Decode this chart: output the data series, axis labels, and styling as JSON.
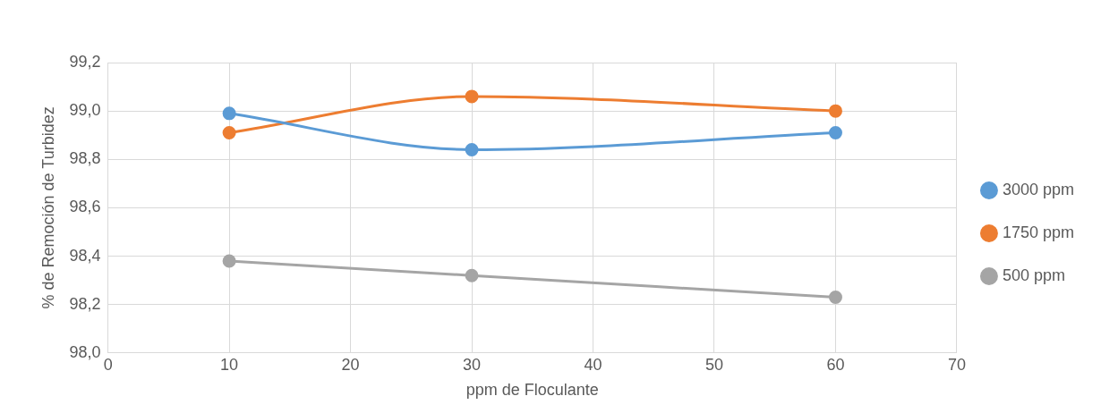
{
  "chart_data": {
    "type": "line",
    "xlabel": "ppm de Floculante",
    "ylabel": "% de Remoción de Turbidez",
    "x": [
      10,
      30,
      60
    ],
    "series": [
      {
        "name": "3000 ppm",
        "color": "#5b9bd5",
        "values": [
          98.99,
          98.84,
          98.91
        ]
      },
      {
        "name": "1750 ppm",
        "color": "#ed7d31",
        "values": [
          98.91,
          99.06,
          99.0
        ]
      },
      {
        "name": "500 ppm",
        "color": "#a5a5a5",
        "values": [
          98.38,
          98.32,
          98.23
        ]
      }
    ],
    "xlim": [
      0,
      70
    ],
    "xticks": [
      0,
      10,
      20,
      30,
      40,
      50,
      60,
      70
    ],
    "ylim": [
      98,
      99.2
    ],
    "yticks": [
      {
        "value": 98,
        "label": "98,0"
      },
      {
        "value": 98.2,
        "label": "98,2"
      },
      {
        "value": 98.4,
        "label": "98,4"
      },
      {
        "value": 98.6,
        "label": "98,6"
      },
      {
        "value": 98.8,
        "label": "98,8"
      },
      {
        "value": 99,
        "label": "99,0"
      },
      {
        "value": 99.2,
        "label": "99,2"
      }
    ],
    "grid": true,
    "legend": "right",
    "marker": "circle",
    "line_style": "solid"
  }
}
